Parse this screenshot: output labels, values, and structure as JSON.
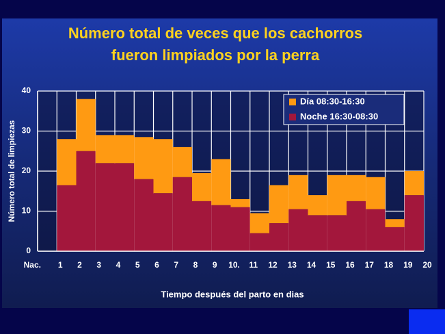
{
  "chart_data": {
    "type": "stacked-step",
    "title": [
      "Número total de veces que los cachorros",
      "fueron limpiados por la perra"
    ],
    "x_label": "Tiempo después del parto en dias",
    "y_label": "Número total de limpiezas",
    "x": [
      1,
      2,
      3,
      4,
      5,
      6,
      7,
      8,
      9,
      10,
      11,
      12,
      13,
      14,
      15,
      16,
      17,
      18,
      19
    ],
    "series": [
      {
        "name": "Noche 16:30-08:30",
        "color": "#a3173c",
        "values": [
          16.5,
          25,
          22,
          22,
          18,
          14.5,
          18.5,
          12.5,
          11.5,
          11,
          4.5,
          7,
          10.5,
          9,
          9,
          12.5,
          10.5,
          6,
          14
        ]
      },
      {
        "name": "Día 08:30-16:30",
        "color": "#ff9a12",
        "values": [
          11.5,
          13,
          7,
          7,
          10.5,
          13.5,
          7.5,
          7,
          11.5,
          2,
          5,
          9.5,
          8.5,
          5,
          10,
          6.5,
          8,
          2,
          6
        ]
      }
    ],
    "xlim": [
      0,
      20
    ],
    "xticks": [
      {
        "value": 0,
        "label": "Nac."
      },
      1,
      2,
      3,
      4,
      5,
      6,
      7,
      8,
      9,
      {
        "value": 10,
        "label": "10."
      },
      11,
      12,
      13,
      14,
      15,
      16,
      17,
      18,
      19,
      20
    ],
    "ylim": [
      0,
      40
    ],
    "yticks": [
      0,
      10,
      20,
      30,
      40
    ],
    "grid": true,
    "legend": "top-right"
  }
}
